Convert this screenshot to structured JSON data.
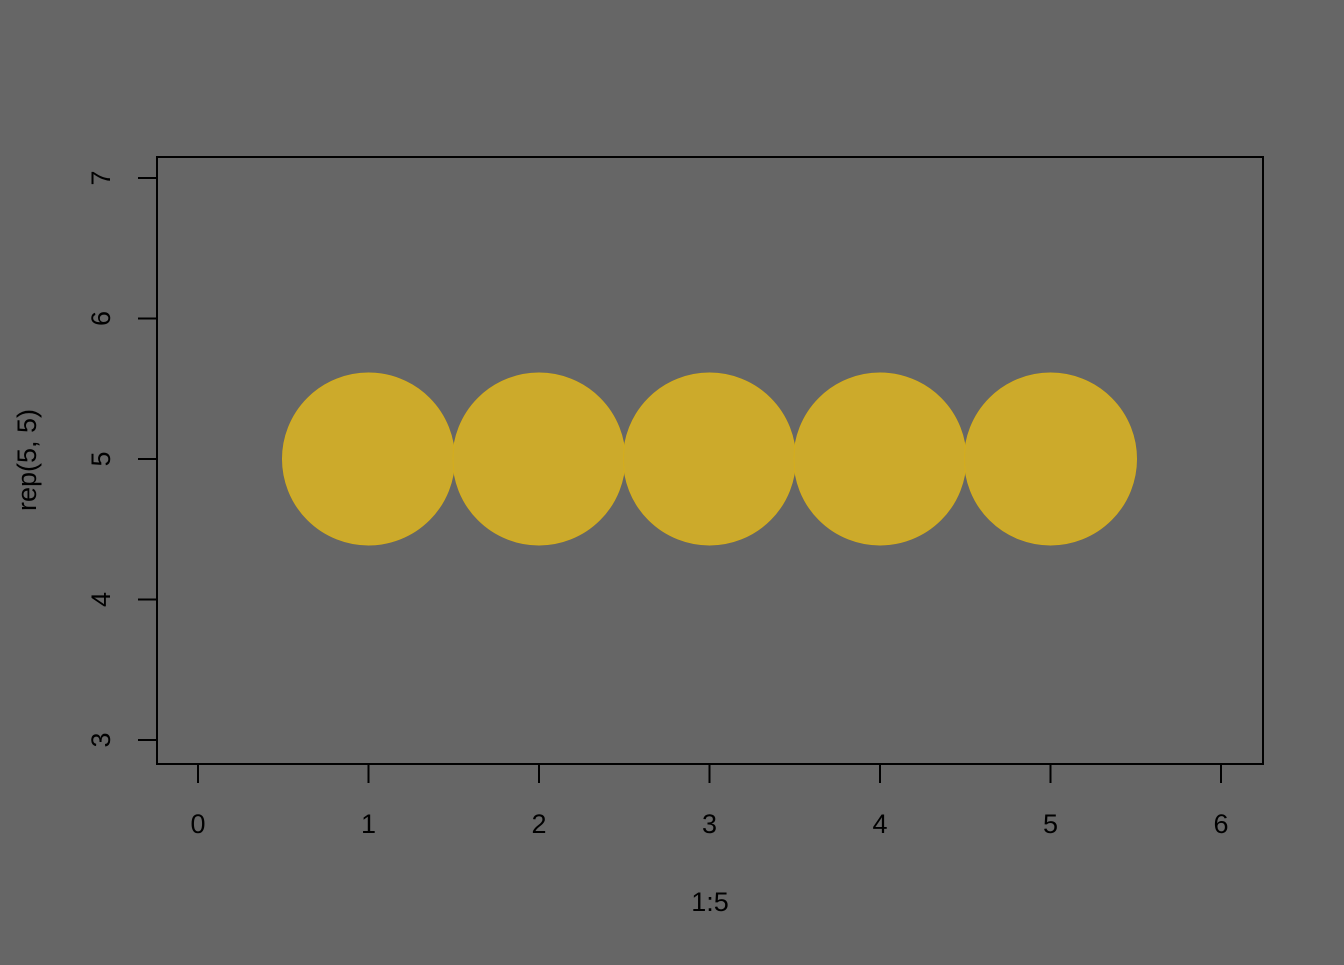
{
  "chart_data": {
    "type": "scatter",
    "title": "",
    "xlabel": "1:5",
    "ylabel": "rep(5, 5)",
    "xlim": [
      0,
      6
    ],
    "ylim": [
      3,
      7
    ],
    "x_ticks": [
      "0",
      "1",
      "2",
      "3",
      "4",
      "5",
      "6"
    ],
    "y_ticks": [
      "3",
      "4",
      "5",
      "6",
      "7"
    ],
    "grid": false,
    "legend": "none",
    "background_color": "#666666",
    "point_color": "#CCAA2B",
    "points": [
      {
        "x": 1,
        "y": 5
      },
      {
        "x": 2,
        "y": 5
      },
      {
        "x": 3,
        "y": 5
      },
      {
        "x": 4,
        "y": 5
      },
      {
        "x": 5,
        "y": 5
      }
    ]
  }
}
